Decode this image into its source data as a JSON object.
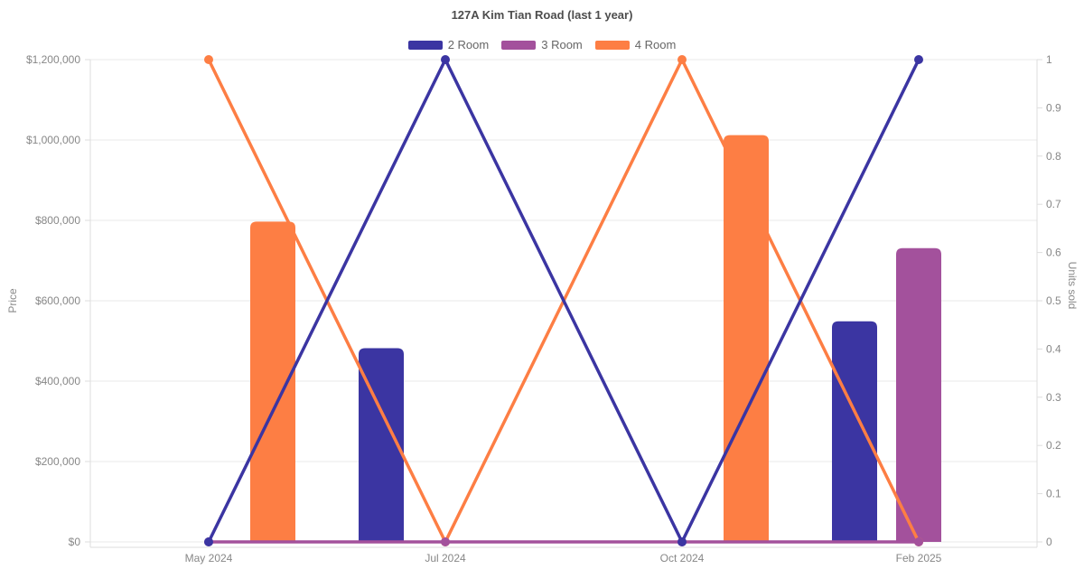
{
  "title": "127A Kim Tian Road (last 1 year)",
  "legend": {
    "items": [
      {
        "label": "2 Room",
        "color": "#3b35a2"
      },
      {
        "label": "3 Room",
        "color": "#a3519c"
      },
      {
        "label": "4 Room",
        "color": "#fd7e44"
      }
    ]
  },
  "axes": {
    "left_label": "Price",
    "right_label": "Units sold",
    "left_tick_labels": [
      "$0",
      "$200,000",
      "$400,000",
      "$600,000",
      "$800,000",
      "$1,000,000",
      "$1,200,000"
    ],
    "right_tick_labels": [
      "0",
      "0.1",
      "0.2",
      "0.3",
      "0.4",
      "0.5",
      "0.6",
      "0.7",
      "0.8",
      "0.9",
      "1"
    ]
  },
  "chart_data": {
    "type": "bar",
    "subtype": "grouped bars (price, left axis) with line overlay (units sold, right axis)",
    "title": "127A Kim Tian Road (last 1 year)",
    "categories": [
      "May 2024",
      "Jul 2024",
      "Oct 2024",
      "Feb 2025"
    ],
    "bar_series": [
      {
        "name": "2 Room",
        "color": "#3b35a2",
        "axis": "left",
        "values": [
          null,
          482000,
          null,
          549000
        ]
      },
      {
        "name": "3 Room",
        "color": "#a3519c",
        "axis": "left",
        "values": [
          null,
          null,
          null,
          731000
        ]
      },
      {
        "name": "4 Room",
        "color": "#fd7e44",
        "axis": "left",
        "values": [
          797000,
          null,
          1012000,
          null
        ]
      }
    ],
    "line_series": [
      {
        "name": "2 Room",
        "color": "#3b35a2",
        "axis": "right",
        "values": [
          0,
          1,
          0,
          1
        ]
      },
      {
        "name": "3 Room",
        "color": "#a3519c",
        "axis": "right",
        "values": [
          0,
          0,
          0,
          0
        ]
      },
      {
        "name": "4 Room",
        "color": "#fd7e44",
        "axis": "right",
        "values": [
          1,
          0,
          1,
          0
        ]
      }
    ],
    "y_left": {
      "label": "Price",
      "min": 0,
      "max": 1200000,
      "tick_step": 200000,
      "tick_format": "$#,##0"
    },
    "y_right": {
      "label": "Units sold",
      "min": 0,
      "max": 1,
      "tick_step": 0.1
    },
    "grid": "horizontal gridlines at each left-axis tick",
    "legend_position": "top",
    "colors": {
      "grid": "#e8e8e8",
      "axis_line": "#dedede",
      "tick_text": "#878787"
    }
  }
}
